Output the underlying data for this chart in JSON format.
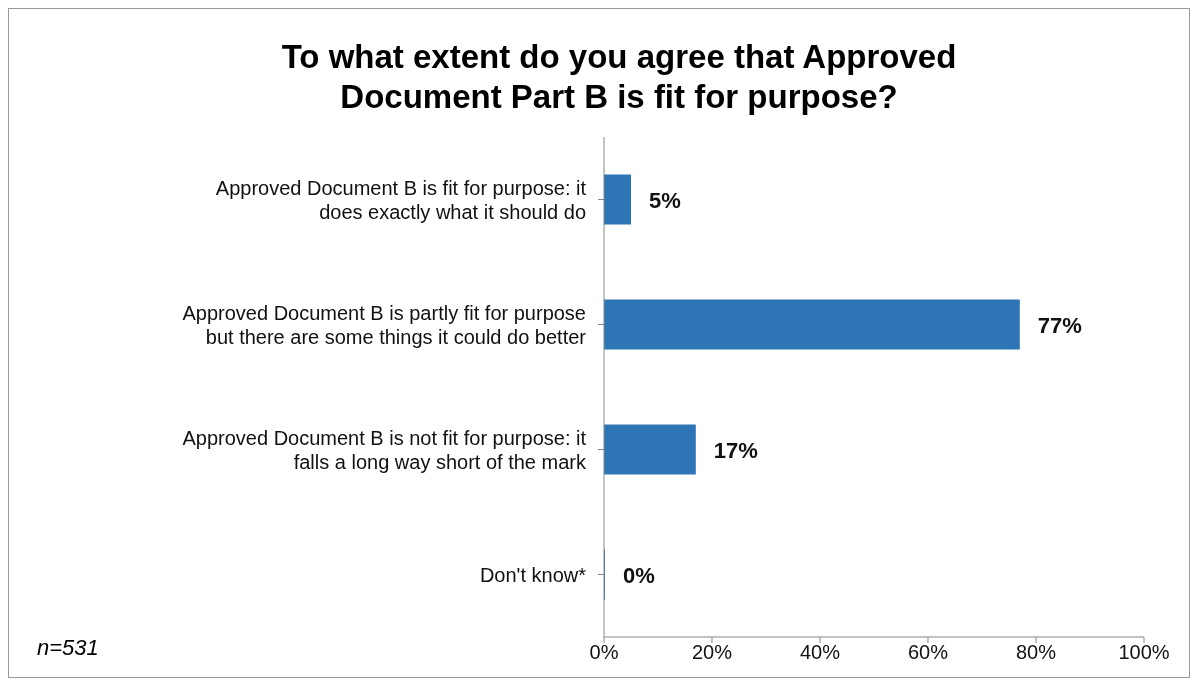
{
  "chart_data": {
    "type": "bar",
    "orientation": "horizontal",
    "title": "To what extent do you agree that Approved Document Part B is fit for purpose?",
    "categories": [
      "Approved Document B is fit for purpose: it does exactly what it should do",
      "Approved Document B is partly fit for purpose but there are some things it could do better",
      "Approved Document B is not fit for purpose: it falls a long way short of the mark",
      "Don't know*"
    ],
    "values": [
      5,
      77,
      17,
      0
    ],
    "value_labels": [
      "5%",
      "77%",
      "17%",
      "0%"
    ],
    "color": "#2e75b6",
    "xlim": [
      0,
      100
    ],
    "xticks": [
      {
        "value": 0,
        "label": "0%"
      },
      {
        "value": 20,
        "label": "20%"
      },
      {
        "value": 40,
        "label": "40%"
      },
      {
        "value": 60,
        "label": "60%"
      },
      {
        "value": 80,
        "label": "80%"
      },
      {
        "value": 100,
        "label": "100%"
      }
    ],
    "grid": false,
    "annotations": [
      "n=531"
    ]
  }
}
